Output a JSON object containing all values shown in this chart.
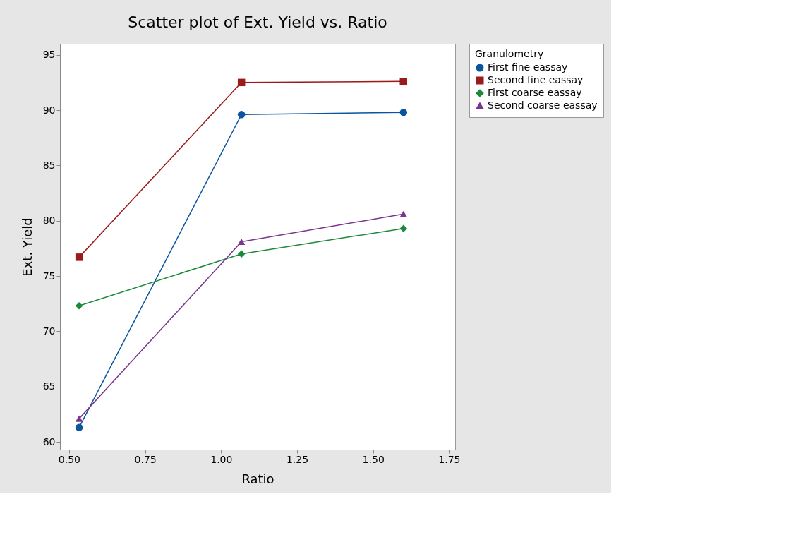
{
  "chart_data": {
    "type": "line",
    "title": "Scatter plot of Ext. Yield vs. Ratio",
    "xlabel": "Ratio",
    "ylabel": "Ext. Yield",
    "legend_title": "Granulometry",
    "x": [
      0.533,
      1.067,
      1.6
    ],
    "series": [
      {
        "name": "First fine eassay",
        "color": "#0b55a0",
        "marker": "circle",
        "values": [
          61.3,
          89.6,
          89.8
        ]
      },
      {
        "name": "Second fine eassay",
        "color": "#9b1a1a",
        "marker": "square",
        "values": [
          76.7,
          92.5,
          92.6
        ]
      },
      {
        "name": "First coarse eassay",
        "color": "#1a8a3a",
        "marker": "diamond",
        "values": [
          72.3,
          77.0,
          79.3
        ]
      },
      {
        "name": "Second coarse eassay",
        "color": "#7a3590",
        "marker": "triangle",
        "values": [
          62.1,
          78.1,
          80.6
        ]
      }
    ],
    "xlim": [
      0.47,
      1.77
    ],
    "xticks": [
      {
        "value": 0.5,
        "label": "0.50"
      },
      0.75,
      {
        "value": 1.0,
        "label": "1.00"
      },
      1.25,
      {
        "value": 1.5,
        "label": "1.50"
      },
      1.75
    ],
    "ylim": [
      59.3,
      96
    ],
    "yticks": [
      60,
      65,
      70,
      75,
      80,
      85,
      90,
      95
    ],
    "grid": false,
    "legend": "top right",
    "line_style": "solid"
  }
}
